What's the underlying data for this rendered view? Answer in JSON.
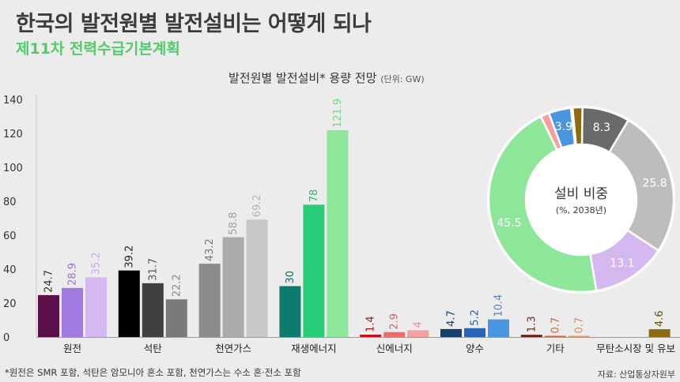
{
  "header": {
    "title": "한국의 발전원별 발전설비는 어떻게 되나",
    "subtitle": "제11차 전력수급기본계획"
  },
  "footer": {
    "footnote": "*원전은 SMR 포함, 석탄은 암모니아 혼소 포함, 천연가스는 수소 혼·전소 포함",
    "source": "자료: 산업통상자원부"
  },
  "chart_data": [
    {
      "type": "bar",
      "title": "발전원별 발전설비* 용량 전망",
      "unit": "(단위: GW)",
      "ylim": [
        0,
        140
      ],
      "yticks": [
        0,
        20,
        40,
        60,
        80,
        100,
        120,
        140
      ],
      "grid": false,
      "categories": [
        "원전",
        "석탄",
        "천연가스",
        "재생에너지",
        "신에너지",
        "양수",
        "기타",
        "무탄소시장 및 유보"
      ],
      "groups": [
        {
          "values": [
            24.7,
            28.9,
            35.2
          ],
          "labels": [
            "24.7",
            "28.9",
            "35.2"
          ],
          "colors": [
            "#5a0f4a",
            "#a07ae0",
            "#d4b8f0"
          ],
          "label_colors": [
            "#333333",
            "#9b6fd8",
            "#c6a8ee"
          ]
        },
        {
          "values": [
            39.2,
            31.7,
            22.2
          ],
          "labels": [
            "39.2",
            "31.7",
            "22.2"
          ],
          "colors": [
            "#000000",
            "#404040",
            "#7a7a7a"
          ],
          "label_colors": [
            "#222222",
            "#555555",
            "#888888"
          ]
        },
        {
          "values": [
            43.2,
            58.8,
            69.2
          ],
          "labels": [
            "43.2",
            "58.8",
            "69.2"
          ],
          "colors": [
            "#8c8c8c",
            "#ababab",
            "#c8c8c8"
          ],
          "label_colors": [
            "#777777",
            "#a0a0a0",
            "#b5b5b5"
          ]
        },
        {
          "values": [
            30,
            78,
            121.9
          ],
          "labels": [
            "30",
            "78",
            "121.9"
          ],
          "colors": [
            "#0d7a6e",
            "#29cd78",
            "#8ee69a"
          ],
          "label_colors": [
            "#0d6e63",
            "#2ab86c",
            "#6fd983"
          ]
        },
        {
          "values": [
            1.4,
            2.9,
            4
          ],
          "labels": [
            "1.4",
            "2.9",
            "4"
          ],
          "colors": [
            "#c0101a",
            "#f36a6a",
            "#f7a0a0"
          ],
          "label_colors": [
            "#b41218",
            "#e35a5a",
            "#ee8a8a"
          ]
        },
        {
          "values": [
            4.7,
            5.2,
            10.4
          ],
          "labels": [
            "4.7",
            "5.2",
            "10.4"
          ],
          "colors": [
            "#143e6e",
            "#2a64b8",
            "#4a94e0"
          ],
          "label_colors": [
            "#1c3e68",
            "#2a5ea8",
            "#3d86d4"
          ]
        },
        {
          "values": [
            1.3,
            0.7,
            0.7
          ],
          "labels": [
            "1.3",
            "0.7",
            "0.7"
          ],
          "colors": [
            "#6a1c16",
            "#c46a3c",
            "#e79a6a"
          ],
          "label_colors": [
            "#6a2820",
            "#c46a3c",
            "#e08858"
          ]
        },
        {
          "values": [
            0,
            0,
            4.6
          ],
          "labels": [
            "",
            "",
            "4.6"
          ],
          "colors": [
            "#8c6a10",
            "#8c6a10",
            "#8c6a10"
          ],
          "label_colors": [
            "#6a5010",
            "#6a5010",
            "#6a5010"
          ]
        }
      ]
    },
    {
      "type": "pie",
      "title": "설비 비중",
      "subtitle": "(%, 2038년)",
      "slices": [
        {
          "value": 8.3,
          "label": "8.3",
          "color": "#6a6a6a",
          "label_color": "#ffffff"
        },
        {
          "value": 25.8,
          "label": "25.8",
          "color": "#bdbdbd",
          "label_color": "#ffffff"
        },
        {
          "value": 13.1,
          "label": "13.1",
          "color": "#d4b8f0",
          "label_color": "#ffffff"
        },
        {
          "value": 45.5,
          "label": "45.5",
          "color": "#8ee69a",
          "label_color": "#ffffff"
        },
        {
          "value": 1.5,
          "label": "",
          "color": "#f7a0a0",
          "label_color": "#ffffff"
        },
        {
          "value": 3.9,
          "label": "3.9",
          "color": "#4a94e0",
          "label_color": "#ffffff"
        },
        {
          "value": 0.3,
          "label": "",
          "color": "#e79a6a",
          "label_color": "#ffffff"
        },
        {
          "value": 1.7,
          "label": "",
          "color": "#8c6a10",
          "label_color": "#ffffff"
        }
      ]
    }
  ]
}
